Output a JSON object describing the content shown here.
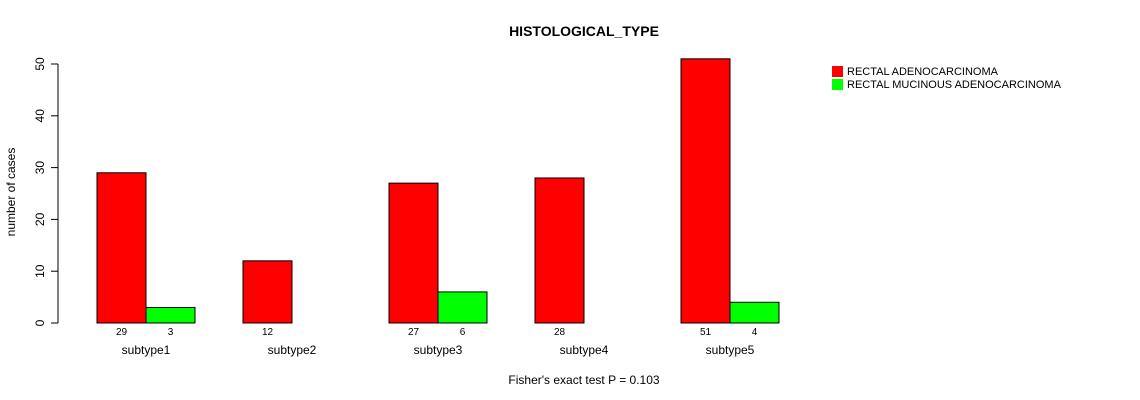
{
  "chart_data": {
    "type": "bar",
    "title": "HISTOLOGICAL_TYPE",
    "xlabel": "",
    "ylabel": "number of cases",
    "ylim": [
      0,
      50
    ],
    "yticks": [
      0,
      10,
      20,
      30,
      40,
      50
    ],
    "categories": [
      "subtype1",
      "subtype2",
      "subtype3",
      "subtype4",
      "subtype5"
    ],
    "series": [
      {
        "name": "RECTAL ADENOCARCINOMA",
        "color": "#ff0000",
        "values": [
          29,
          12,
          27,
          28,
          51
        ],
        "labels": [
          "29",
          "12",
          "27",
          "28",
          "51"
        ]
      },
      {
        "name": "RECTAL MUCINOUS ADENOCARCINOMA",
        "color": "#00ff00",
        "values": [
          3,
          0,
          6,
          0,
          4
        ],
        "labels": [
          "3",
          "",
          "6",
          "",
          "4"
        ]
      }
    ],
    "legend_position": "top-right",
    "grid": false,
    "footnote": "Fisher's exact test P = 0.103"
  }
}
